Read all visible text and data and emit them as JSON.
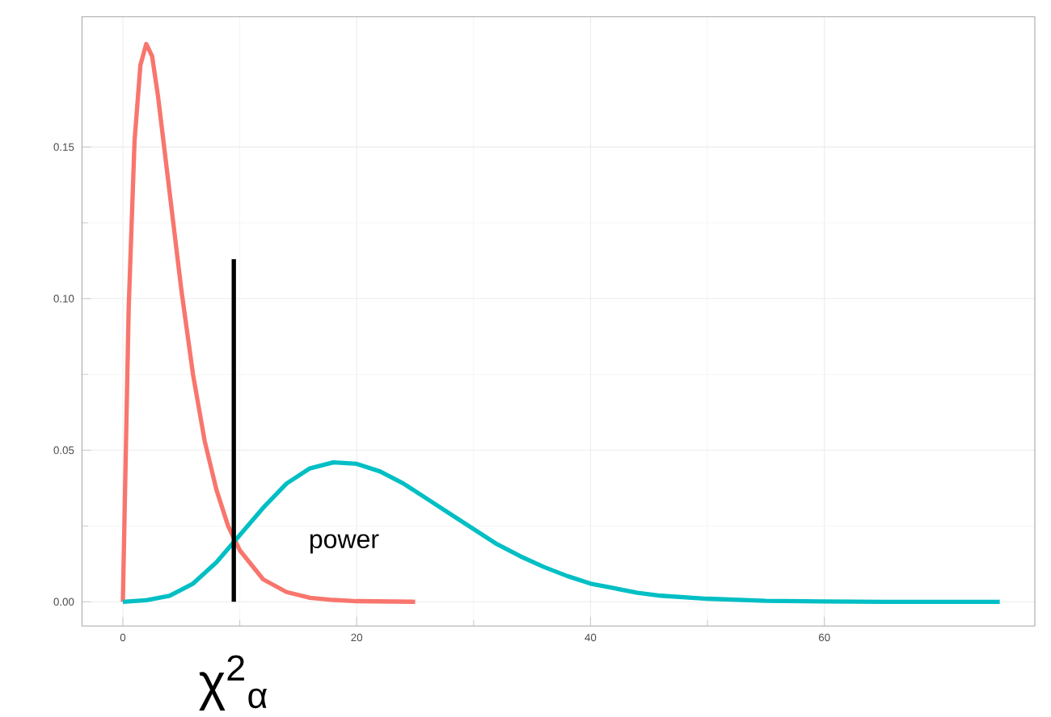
{
  "chart_data": {
    "type": "line",
    "xlim": [
      -3.5,
      78
    ],
    "ylim": [
      -0.008,
      0.193
    ],
    "xticks": [
      0,
      20,
      40,
      60
    ],
    "yticks": [
      {
        "value": 0,
        "label": "0.00"
      },
      {
        "value": 0.05,
        "label": "0.05"
      },
      {
        "value": 0.1,
        "label": "0.10"
      },
      {
        "value": 0.15,
        "label": "0.15"
      }
    ],
    "grid": true,
    "series": [
      {
        "color": "#f8766d",
        "x": [
          0,
          0,
          0.5,
          1,
          1.5,
          2,
          2.5,
          3,
          4,
          5,
          6,
          7,
          8,
          9,
          10,
          12,
          14,
          16,
          18,
          20,
          25
        ],
        "values": [
          0,
          0.0,
          0.097,
          0.152,
          0.177,
          0.184,
          0.18,
          0.167,
          0.135,
          0.103,
          0.075,
          0.053,
          0.037,
          0.025,
          0.017,
          0.0074,
          0.0032,
          0.0013,
          0.0006,
          0.0002,
          0
        ]
      },
      {
        "color": "#00bfc4",
        "x": [
          0,
          2,
          4,
          6,
          8,
          10,
          12,
          14,
          16,
          18,
          20,
          22,
          24,
          26,
          28,
          30,
          32,
          34,
          36,
          38,
          40,
          42,
          44,
          46,
          50,
          55,
          60,
          65,
          70,
          75
        ],
        "values": [
          0,
          0.0005,
          0.002,
          0.006,
          0.013,
          0.022,
          0.031,
          0.039,
          0.044,
          0.046,
          0.0455,
          0.043,
          0.039,
          0.034,
          0.029,
          0.024,
          0.019,
          0.015,
          0.0115,
          0.0085,
          0.006,
          0.0045,
          0.003,
          0.002,
          0.001,
          0.0003,
          0.0001,
          0,
          0,
          0
        ]
      },
      {
        "color": "#000000",
        "x": [
          9.49,
          9.49
        ],
        "values": [
          0,
          0.113
        ]
      }
    ],
    "annotations": [
      "power",
      "χ$^{2}$$_{α}$"
    ]
  }
}
